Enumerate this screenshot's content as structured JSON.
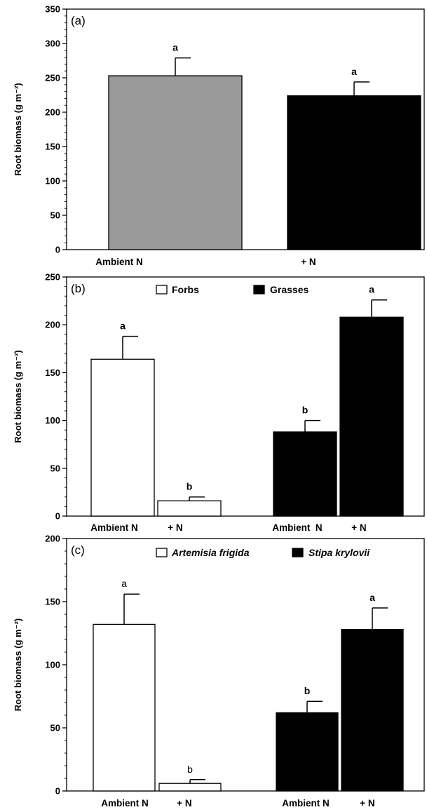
{
  "chart_data": [
    {
      "type": "bar",
      "panel_label": "(a)",
      "ylabel": "Root biomass (g m⁻²)",
      "ylim": [
        0,
        350
      ],
      "yticks": [
        0,
        50,
        100,
        150,
        200,
        250,
        300,
        350
      ],
      "minor_ticks_per_major": 4,
      "legend": null,
      "categories": [
        "Ambient N",
        "+ N"
      ],
      "bars": [
        {
          "category": "Ambient N",
          "value": 253,
          "error": 26,
          "label": "a",
          "color": "#999999"
        },
        {
          "category": "+ N",
          "value": 224,
          "error": 20,
          "label": "a",
          "color": "#000000"
        }
      ],
      "label_bold": true
    },
    {
      "type": "bar",
      "panel_label": "(b)",
      "ylabel": "Root biomass (g m⁻²)",
      "ylim": [
        0,
        250
      ],
      "yticks": [
        0,
        50,
        100,
        150,
        200,
        250
      ],
      "minor_ticks_per_major": 4,
      "legend": {
        "placement": "top-center",
        "italic": false,
        "items": [
          {
            "name": "Forbs",
            "color": "#ffffff"
          },
          {
            "name": "Grasses",
            "color": "#000000"
          }
        ]
      },
      "categories": [
        "Ambient N",
        "+ N",
        "Ambient  N",
        "+ N"
      ],
      "bars": [
        {
          "category": "Ambient N",
          "series": "Forbs",
          "value": 164,
          "error": 24,
          "label": "a",
          "color": "#ffffff"
        },
        {
          "category": "+ N",
          "series": "Forbs",
          "value": 16,
          "error": 4,
          "label": "b",
          "color": "#ffffff"
        },
        {
          "category": "Ambient  N",
          "series": "Grasses",
          "value": 88,
          "error": 12,
          "label": "b",
          "color": "#000000"
        },
        {
          "category": "+ N",
          "series": "Grasses",
          "value": 208,
          "error": 18,
          "label": "a",
          "color": "#000000"
        }
      ],
      "label_bold": true
    },
    {
      "type": "bar",
      "panel_label": "(c)",
      "ylabel": "Root biomass (g m⁻²)",
      "ylim": [
        0,
        200
      ],
      "yticks": [
        0,
        50,
        100,
        150,
        200
      ],
      "minor_ticks_per_major": 4,
      "legend": {
        "placement": "top-center",
        "italic": true,
        "items": [
          {
            "name": "Artemisia frigida",
            "color": "#ffffff"
          },
          {
            "name": "Stipa krylovii",
            "color": "#000000"
          }
        ]
      },
      "categories": [
        "Ambient N",
        "+ N",
        "Ambient N",
        "+ N"
      ],
      "bars": [
        {
          "category": "Ambient N",
          "series": "Artemisia frigida",
          "value": 132,
          "error": 24,
          "label": "a",
          "color": "#ffffff"
        },
        {
          "category": "+ N",
          "series": "Artemisia frigida",
          "value": 6,
          "error": 3,
          "label": "b",
          "color": "#ffffff"
        },
        {
          "category": "Ambient N",
          "series": "Stipa krylovii",
          "value": 62,
          "error": 9,
          "label": "b",
          "color": "#000000"
        },
        {
          "category": "+ N",
          "series": "Stipa krylovii",
          "value": 128,
          "error": 17,
          "label": "a",
          "color": "#000000"
        }
      ],
      "label_bold": false,
      "label_bold_overrides": [
        false,
        false,
        true,
        true
      ]
    }
  ]
}
